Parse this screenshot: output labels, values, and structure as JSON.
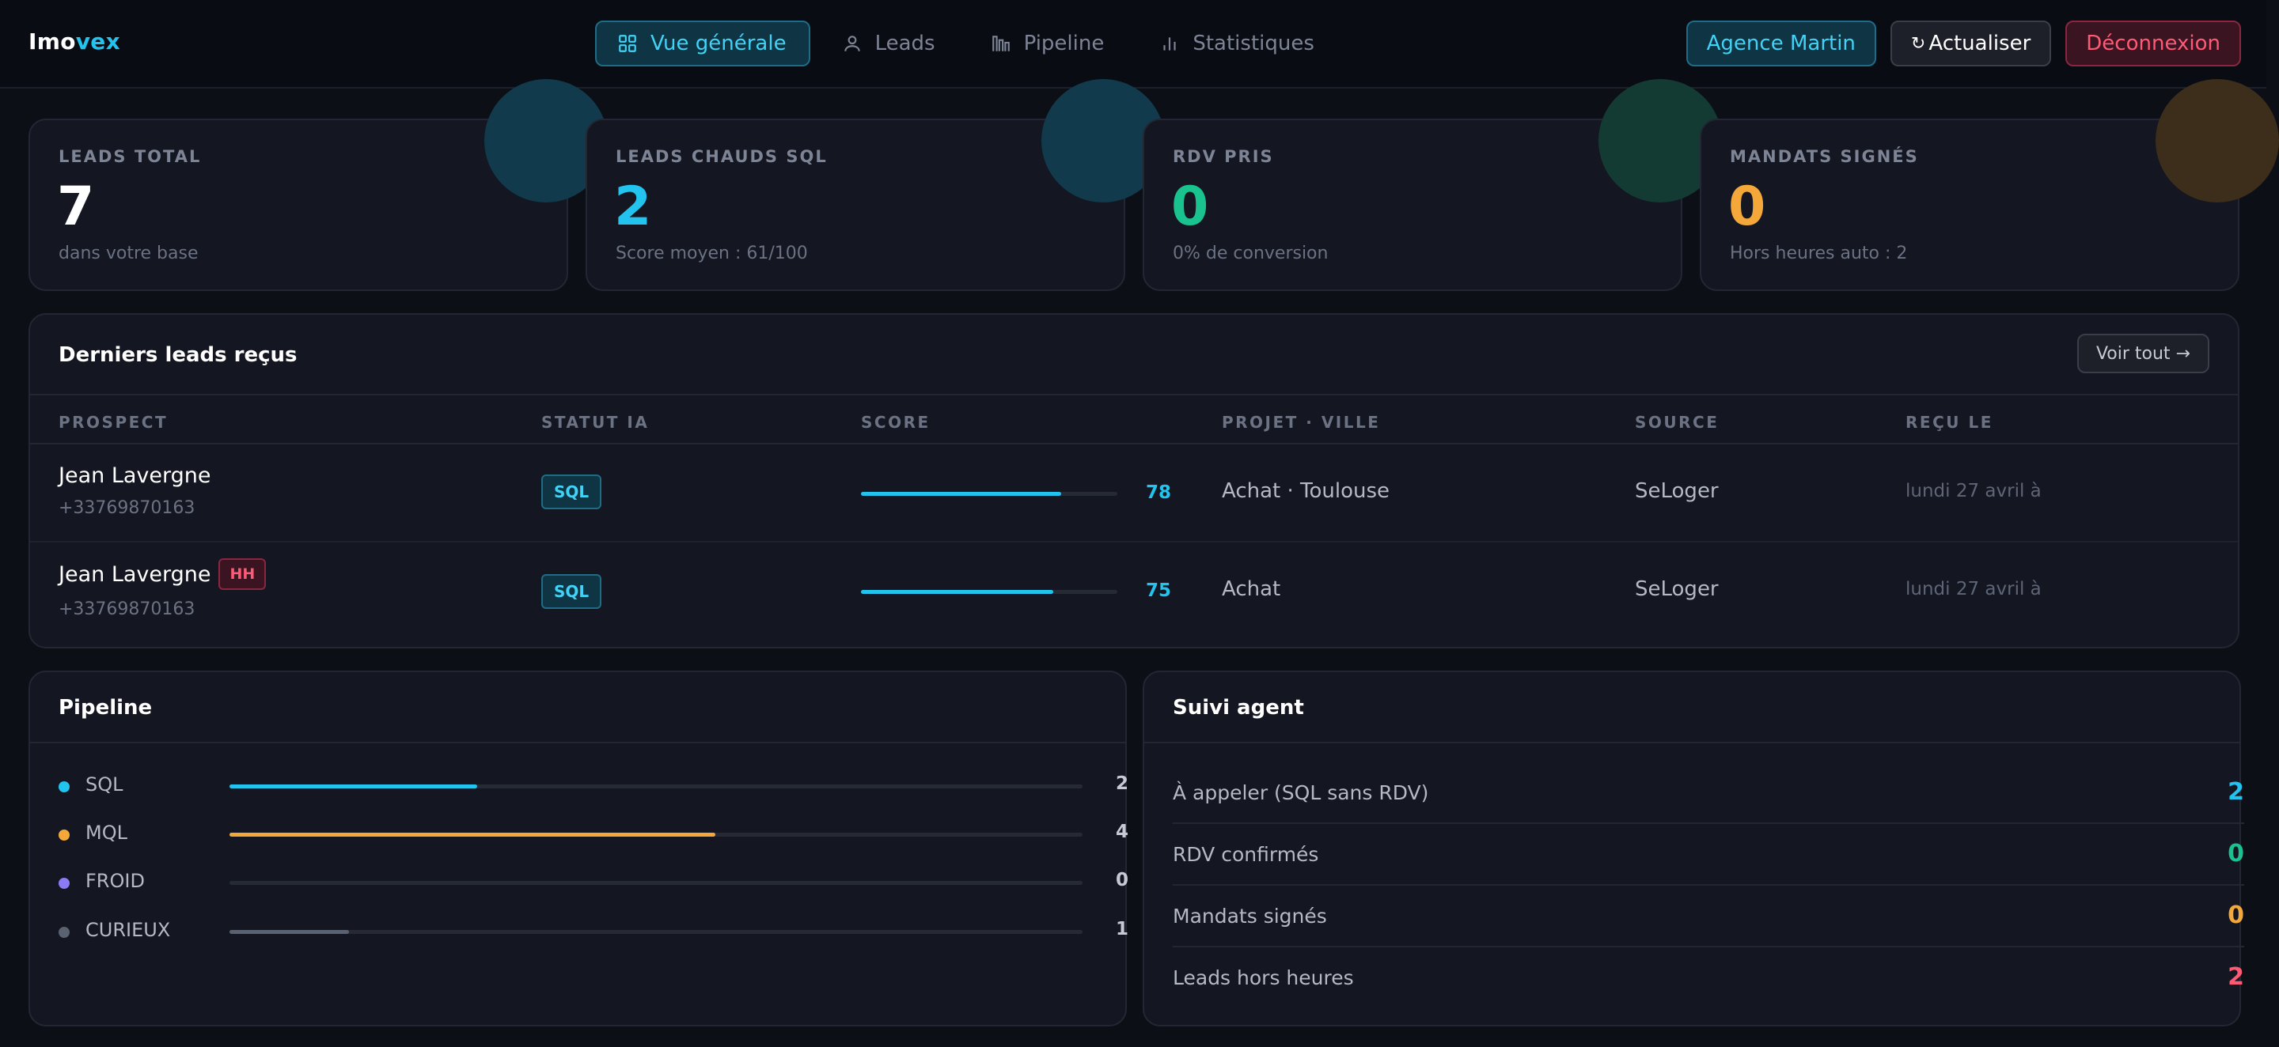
{
  "app": {
    "logo_main": "Imo",
    "logo_accent": "vex"
  },
  "nav": {
    "items": [
      {
        "label": "Vue générale",
        "icon": "grid-icon",
        "active": true
      },
      {
        "label": "Leads",
        "icon": "user-icon",
        "active": false
      },
      {
        "label": "Pipeline",
        "icon": "columns-icon",
        "active": false
      },
      {
        "label": "Statistiques",
        "icon": "bar-chart-icon",
        "active": false
      }
    ]
  },
  "header_actions": {
    "agency": "Agence Martin",
    "refresh_icon": "↻",
    "refresh": "Actualiser",
    "logout": "Déconnexion"
  },
  "stats": [
    {
      "label": "LEADS TOTAL",
      "value": "7",
      "sub": "dans votre base",
      "color": "#ffffff",
      "corner": "#123a4d"
    },
    {
      "label": "LEADS CHAUDS SQL",
      "value": "2",
      "sub": "Score moyen : 61/100",
      "color": "#22c4ef",
      "corner": "#123a4d"
    },
    {
      "label": "RDV PRIS",
      "value": "0",
      "sub": "0% de conversion",
      "color": "#19c28e",
      "corner": "#143b33"
    },
    {
      "label": "MANDATS SIGNÉS",
      "value": "0",
      "sub": "Hors heures auto : 2",
      "color": "#f4a83a",
      "corner": "#3d2d1b"
    }
  ],
  "leads": {
    "title": "Derniers leads reçus",
    "view_all": "Voir tout →",
    "columns": [
      "PROSPECT",
      "STATUT IA",
      "SCORE",
      "PROJET · VILLE",
      "SOURCE",
      "REÇU LE"
    ],
    "rows": [
      {
        "name": "Jean Lavergne",
        "badge": "",
        "phone": "+33769870163",
        "status": "SQL",
        "score": 78,
        "score_label": "78",
        "project": "Achat · Toulouse",
        "source": "SeLoger",
        "date": "lundi 27 avril à"
      },
      {
        "name": "Jean Lavergne",
        "badge": "HH",
        "phone": "+33769870163",
        "status": "SQL",
        "score": 75,
        "score_label": "75",
        "project": "Achat",
        "source": "SeLoger",
        "date": "lundi 27 avril à"
      }
    ]
  },
  "pipeline": {
    "title": "Pipeline",
    "rows": [
      {
        "label": "SQL",
        "count": "2",
        "fraction": 0.29,
        "color": "#22c4ef"
      },
      {
        "label": "MQL",
        "count": "4",
        "fraction": 0.57,
        "color": "#f4a83a"
      },
      {
        "label": "FROID",
        "count": "0",
        "fraction": 0.0,
        "color": "#8b7cf6"
      },
      {
        "label": "CURIEUX",
        "count": "1",
        "fraction": 0.14,
        "color": "#5a6170"
      }
    ]
  },
  "agent": {
    "title": "Suivi agent",
    "rows": [
      {
        "label": "À appeler (SQL sans RDV)",
        "value": "2",
        "color": "#22c4ef"
      },
      {
        "label": "RDV confirmés",
        "value": "0",
        "color": "#19c28e"
      },
      {
        "label": "Mandats signés",
        "value": "0",
        "color": "#f4a83a"
      },
      {
        "label": "Leads hors heures",
        "value": "2",
        "color": "#ff5a75"
      }
    ]
  }
}
